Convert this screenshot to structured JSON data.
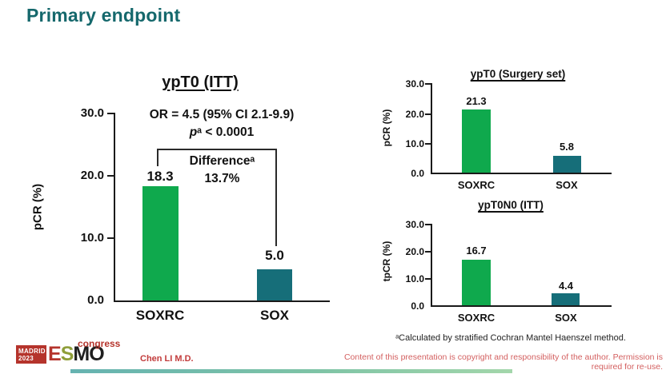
{
  "slide": {
    "title": "Primary endpoint",
    "author": "Chen LI M.D.",
    "disclaimer": "Content of this presentation is copyright and responsibility of the author. Permission is required for re-use.",
    "footnote": "ᵃCalculated by stratified Cochran Mantel Haenszel method.",
    "logo": {
      "venue": "MADRID",
      "year": "2023",
      "letter_e": "E",
      "letter_s": "S",
      "letter_m": "M",
      "letter_o": "O",
      "congress": "congress"
    }
  },
  "colors": {
    "title_teal": "#15686c",
    "bar_green": "#0fa94d",
    "bar_teal": "#166e79",
    "logo_red": "#b5342c",
    "logo_olive": "#8f9e3a",
    "logo_black": "#1f1f1f",
    "author_red": "#c23b3b",
    "disclaimer_red": "#d35f5f"
  },
  "chart_data": [
    {
      "type": "bar",
      "title": "ypT0 (ITT)",
      "ylabel": "pCR (%)",
      "ylim": [
        0,
        30
      ],
      "yticks": [
        "30.0",
        "20.0",
        "10.0",
        "0.0"
      ],
      "categories": [
        "SOXRC",
        "SOX"
      ],
      "values": [
        18.3,
        5.0
      ],
      "value_labels": [
        "18.3",
        "5.0"
      ],
      "series_colors": [
        "#0fa94d",
        "#166e79"
      ],
      "grid": "off",
      "legend": "none",
      "annotations": {
        "or_line": "OR = 4.5 (95% CI 2.1-9.9)",
        "p_var": "p",
        "p_rest": "ᵃ < 0.0001",
        "difference_label": "Differenceᵃ",
        "difference_value": "13.7%"
      }
    },
    {
      "type": "bar",
      "title": "ypT0 (Surgery set)",
      "ylabel": "pCR (%)",
      "ylim": [
        0,
        30
      ],
      "yticks": [
        "30.0",
        "20.0",
        "10.0",
        "0.0"
      ],
      "categories": [
        "SOXRC",
        "SOX"
      ],
      "values": [
        21.3,
        5.8
      ],
      "value_labels": [
        "21.3",
        "5.8"
      ],
      "series_colors": [
        "#0fa94d",
        "#166e79"
      ],
      "grid": "off",
      "legend": "none"
    },
    {
      "type": "bar",
      "title": "ypT0N0 (ITT)",
      "ylabel": "tpCR (%)",
      "ylim": [
        0,
        30
      ],
      "yticks": [
        "30.0",
        "20.0",
        "10.0",
        "0.0"
      ],
      "categories": [
        "SOXRC",
        "SOX"
      ],
      "values": [
        16.7,
        4.4
      ],
      "value_labels": [
        "16.7",
        "4.4"
      ],
      "series_colors": [
        "#0fa94d",
        "#166e79"
      ],
      "grid": "off",
      "legend": "none"
    }
  ]
}
